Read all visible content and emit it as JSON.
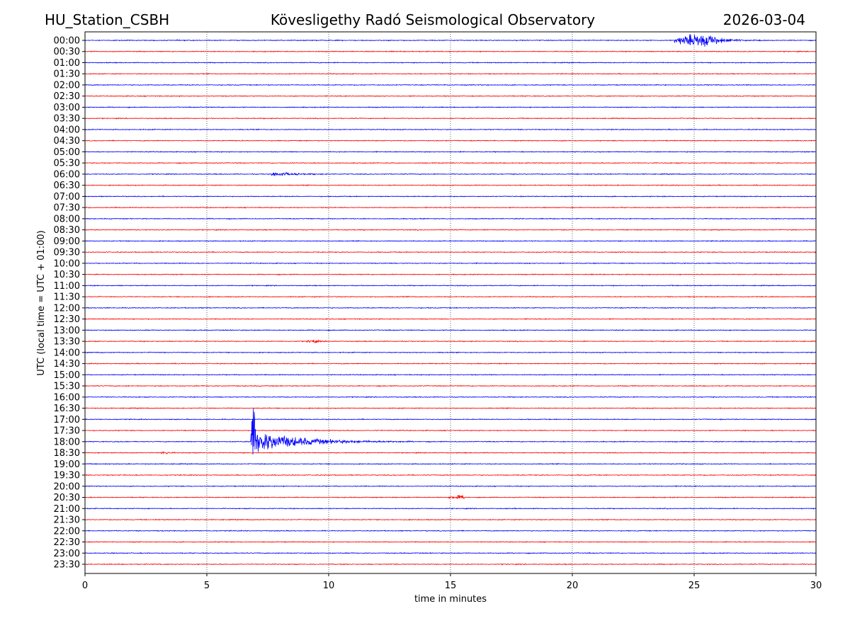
{
  "header": {
    "station": "HU_Station_CSBH",
    "observatory": "Kövesligethy Radó Seismological Observatory",
    "date": "2026-03-04"
  },
  "chart_data": {
    "type": "line",
    "title": "Kövesligethy Radó Seismological Observatory",
    "xlabel": "time in minutes",
    "ylabel": "UTC (local time = UTC + 01:00)",
    "xlim": [
      0,
      30
    ],
    "xticks": [
      "0",
      "5",
      "10",
      "15",
      "20",
      "25",
      "30"
    ],
    "grid": "vertical dotted at x ticks",
    "row_labels": [
      "00:00",
      "00:30",
      "01:00",
      "01:30",
      "02:00",
      "02:30",
      "03:00",
      "03:30",
      "04:00",
      "04:30",
      "05:00",
      "05:30",
      "06:00",
      "06:30",
      "07:00",
      "07:30",
      "08:00",
      "08:30",
      "09:00",
      "09:30",
      "10:00",
      "10:30",
      "11:00",
      "11:30",
      "12:00",
      "12:30",
      "13:00",
      "13:30",
      "14:00",
      "14:30",
      "15:00",
      "15:30",
      "16:00",
      "16:30",
      "17:00",
      "17:30",
      "18:00",
      "18:30",
      "19:00",
      "19:30",
      "20:00",
      "20:30",
      "21:00",
      "21:30",
      "22:00",
      "22:30",
      "23:00",
      "23:30"
    ],
    "colors": [
      "#0000ff",
      "#ff0000"
    ],
    "noise_level": 1,
    "events": [
      {
        "row": "00:00",
        "start_min": 24.2,
        "peak_min": 25.4,
        "end_min": 27.8,
        "amplitude": 14
      },
      {
        "row": "06:00",
        "start_min": 7.6,
        "peak_min": 7.8,
        "end_min": 10.5,
        "amplitude": 4
      },
      {
        "row": "13:30",
        "start_min": 9.1,
        "peak_min": 9.4,
        "end_min": 10.0,
        "amplitude": 3
      },
      {
        "row": "18:00",
        "start_min": 6.8,
        "peak_min": 6.9,
        "end_min": 13.5,
        "amplitude": 80
      },
      {
        "row": "18:30",
        "start_min": 3.1,
        "peak_min": 3.3,
        "end_min": 3.9,
        "amplitude": 3
      },
      {
        "row": "20:30",
        "start_min": 14.9,
        "peak_min": 15.5,
        "end_min": 15.7,
        "amplitude": 4
      }
    ]
  }
}
